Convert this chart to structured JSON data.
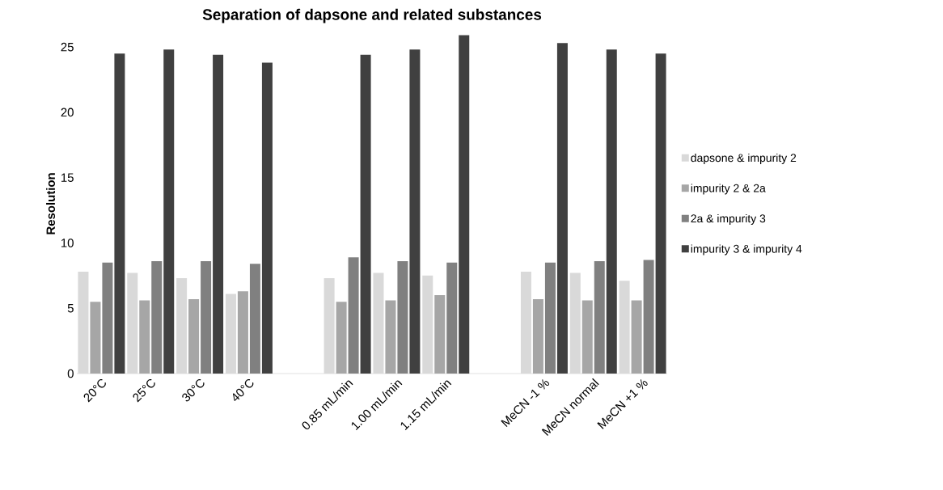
{
  "chart_data": {
    "type": "bar",
    "title": "Separation of dapsone and related substances",
    "ylabel": "Resolution",
    "categories": [
      "20°C",
      "25°C",
      "30°C",
      "40°C",
      null,
      "0.85 mL/min",
      "1.00 mL/min",
      "1.15 mL/min",
      null,
      "MeCN -1 %",
      "MeCN normal",
      "MeCN +1 %"
    ],
    "series": [
      {
        "name": "dapsone & impurity 2",
        "color": "#d9d9d9",
        "values": [
          7.8,
          7.7,
          7.3,
          6.1,
          null,
          7.3,
          7.7,
          7.5,
          null,
          7.8,
          7.7,
          7.1
        ]
      },
      {
        "name": "impurity 2 & 2a",
        "color": "#a6a6a6",
        "values": [
          5.5,
          5.6,
          5.7,
          6.3,
          null,
          5.5,
          5.6,
          6.0,
          null,
          5.7,
          5.6,
          5.6
        ]
      },
      {
        "name": "2a & impurity 3",
        "color": "#808080",
        "values": [
          8.5,
          8.6,
          8.6,
          8.4,
          null,
          8.9,
          8.6,
          8.5,
          null,
          8.5,
          8.6,
          8.7
        ]
      },
      {
        "name": "impurity 3 & impurity 4",
        "color": "#404040",
        "values": [
          24.5,
          24.8,
          24.4,
          23.8,
          null,
          24.4,
          24.8,
          25.9,
          null,
          25.3,
          24.8,
          24.5
        ]
      }
    ],
    "ylim": [
      0,
      26
    ],
    "yticks": [
      0,
      5,
      10,
      15,
      20,
      25
    ],
    "grid": false,
    "legend": "right"
  }
}
